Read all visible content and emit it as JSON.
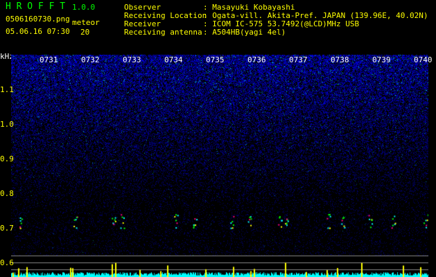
{
  "app": {
    "name": "H R O F F T",
    "version": "1.0.0"
  },
  "file": {
    "name": "0506160730.png",
    "datetime": "05.06.16 07:30",
    "meteor_label": "meteor",
    "meteor_count": "20"
  },
  "info": [
    {
      "label": "Observer",
      "value": ": Masayuki Kobayashi"
    },
    {
      "label": "Receiving Location",
      "value": ": Ogata-vill. Akita-Pref. JAPAN (139.96E, 40.02N)"
    },
    {
      "label": "Receiver",
      "value": ": ICOM IC-575 53.7492(@LCD)MHz USB"
    },
    {
      "label": "Receiving antenna",
      "value": ": A504HB(yagi 4el)"
    }
  ],
  "axis": {
    "unit": "kHz",
    "y_ticks": [
      "1.1",
      "1.0",
      "0.9",
      "0.8",
      "0.7",
      "0.6"
    ],
    "time_ticks": [
      "0731",
      "0732",
      "0733",
      "0734",
      "0735",
      "0736",
      "0737",
      "0738",
      "0739",
      "0740"
    ]
  },
  "colors": {
    "text": "#ffff00",
    "title": "#00ff00",
    "noise": "#2020ff",
    "histogram": "#00ffff",
    "peaks": "#ffff00"
  }
}
